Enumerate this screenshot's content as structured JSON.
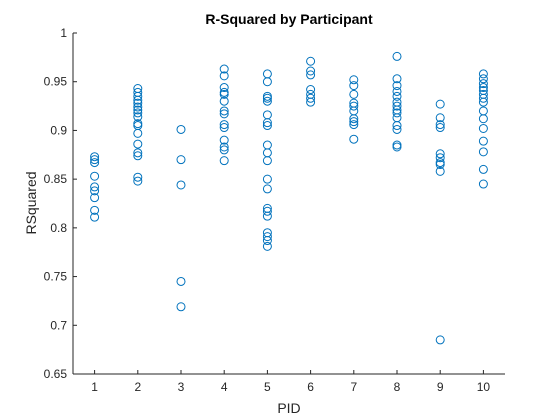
{
  "chart_data": {
    "type": "scatter",
    "title": "R-Squared by Participant",
    "xlabel": "PID",
    "ylabel": "RSquared",
    "xlim": [
      0.5,
      10.5
    ],
    "ylim": [
      0.65,
      1.0
    ],
    "x_ticks": [
      1,
      2,
      3,
      4,
      5,
      6,
      7,
      8,
      9,
      10
    ],
    "y_ticks": [
      0.65,
      0.7,
      0.75,
      0.8,
      0.85,
      0.9,
      0.95,
      1
    ],
    "x_tick_labels": [
      "1",
      "2",
      "3",
      "4",
      "5",
      "6",
      "7",
      "8",
      "9",
      "10"
    ],
    "y_tick_labels": [
      "0.65",
      "0.7",
      "0.75",
      "0.8",
      "0.85",
      "0.9",
      "0.95",
      "1"
    ],
    "marker": "open-circle",
    "marker_color": "#0072BD",
    "box": false,
    "grid": false,
    "points": [
      {
        "pid": 1,
        "values": [
          0.873,
          0.87,
          0.867,
          0.853,
          0.842,
          0.838,
          0.831,
          0.818,
          0.811
        ]
      },
      {
        "pid": 2,
        "values": [
          0.943,
          0.939,
          0.935,
          0.931,
          0.928,
          0.924,
          0.921,
          0.918,
          0.914,
          0.907,
          0.905,
          0.897,
          0.886,
          0.877,
          0.874,
          0.852,
          0.848
        ]
      },
      {
        "pid": 3,
        "values": [
          0.901,
          0.87,
          0.844,
          0.745,
          0.719
        ]
      },
      {
        "pid": 4,
        "values": [
          0.963,
          0.956,
          0.944,
          0.939,
          0.937,
          0.93,
          0.92,
          0.917,
          0.906,
          0.903,
          0.89,
          0.883,
          0.88,
          0.869
        ]
      },
      {
        "pid": 5,
        "values": [
          0.958,
          0.95,
          0.935,
          0.933,
          0.93,
          0.916,
          0.908,
          0.905,
          0.885,
          0.877,
          0.869,
          0.85,
          0.84,
          0.82,
          0.817,
          0.812,
          0.795,
          0.791,
          0.787,
          0.781
        ]
      },
      {
        "pid": 6,
        "values": [
          0.971,
          0.961,
          0.957,
          0.942,
          0.937,
          0.933,
          0.929
        ]
      },
      {
        "pid": 7,
        "values": [
          0.952,
          0.946,
          0.937,
          0.928,
          0.925,
          0.92,
          0.912,
          0.909,
          0.906,
          0.891
        ]
      },
      {
        "pid": 8,
        "values": [
          0.976,
          0.953,
          0.946,
          0.94,
          0.935,
          0.929,
          0.925,
          0.921,
          0.918,
          0.913,
          0.905,
          0.901,
          0.885,
          0.883
        ]
      },
      {
        "pid": 9,
        "values": [
          0.927,
          0.913,
          0.906,
          0.903,
          0.876,
          0.872,
          0.867,
          0.865,
          0.858,
          0.685
        ]
      },
      {
        "pid": 10,
        "values": [
          0.958,
          0.953,
          0.948,
          0.944,
          0.941,
          0.937,
          0.933,
          0.929,
          0.92,
          0.912,
          0.902,
          0.889,
          0.878,
          0.86,
          0.845
        ]
      }
    ]
  }
}
